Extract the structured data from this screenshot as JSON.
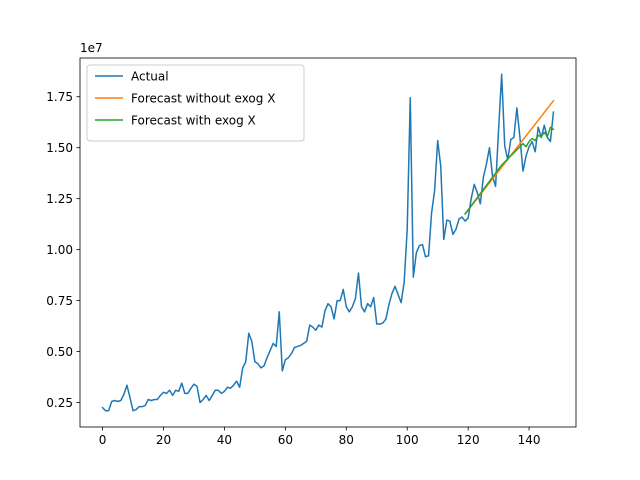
{
  "chart_data": {
    "type": "line",
    "title": "",
    "xlabel": "",
    "ylabel": "",
    "y_offset_label": "1e7",
    "xlim": [
      -7.4,
      155.4
    ],
    "ylim": [
      1.3,
      19.4
    ],
    "x_ticks": [
      0,
      20,
      40,
      60,
      80,
      100,
      120,
      140
    ],
    "x_tick_labels": [
      "0",
      "20",
      "40",
      "60",
      "80",
      "100",
      "120",
      "140"
    ],
    "y_ticks": [
      2.5,
      5.0,
      7.5,
      10.0,
      12.5,
      15.0,
      17.5
    ],
    "y_tick_labels": [
      "0.25",
      "0.50",
      "0.75",
      "1.00",
      "1.25",
      "1.50",
      "1.75"
    ],
    "grid": false,
    "legend_position": "top-left",
    "series": [
      {
        "name": "Actual",
        "color": "#1f77b4",
        "x": [
          0,
          1,
          2,
          3,
          4,
          5,
          6,
          7,
          8,
          9,
          10,
          11,
          12,
          13,
          14,
          15,
          16,
          17,
          18,
          19,
          20,
          21,
          22,
          23,
          24,
          25,
          26,
          27,
          28,
          29,
          30,
          31,
          32,
          33,
          34,
          35,
          36,
          37,
          38,
          39,
          40,
          41,
          42,
          43,
          44,
          45,
          46,
          47,
          48,
          49,
          50,
          51,
          52,
          53,
          54,
          55,
          56,
          57,
          58,
          59,
          60,
          61,
          62,
          63,
          64,
          65,
          66,
          67,
          68,
          69,
          70,
          71,
          72,
          73,
          74,
          75,
          76,
          77,
          78,
          79,
          80,
          81,
          82,
          83,
          84,
          85,
          86,
          87,
          88,
          89,
          90,
          91,
          92,
          93,
          94,
          95,
          96,
          97,
          98,
          99,
          100,
          101,
          102,
          103,
          104,
          105,
          106,
          107,
          108,
          109,
          110,
          111,
          112,
          113,
          114,
          115,
          116,
          117,
          118,
          119,
          120,
          121,
          122,
          123,
          124,
          125,
          126,
          127,
          128,
          129,
          130,
          131,
          132,
          133,
          134,
          135,
          136,
          137,
          138,
          139,
          140,
          141,
          142,
          143,
          144,
          145,
          146,
          147,
          148
        ],
        "values": [
          2.25,
          2.1,
          2.1,
          2.55,
          2.6,
          2.55,
          2.6,
          2.9,
          3.35,
          2.75,
          2.1,
          2.15,
          2.3,
          2.3,
          2.35,
          2.65,
          2.6,
          2.65,
          2.65,
          2.85,
          3.0,
          2.95,
          3.1,
          2.85,
          3.1,
          3.05,
          3.45,
          2.95,
          2.95,
          3.2,
          3.4,
          3.3,
          2.5,
          2.65,
          2.85,
          2.6,
          2.85,
          3.1,
          3.1,
          2.95,
          3.05,
          3.25,
          3.2,
          3.35,
          3.55,
          3.25,
          4.2,
          4.5,
          5.9,
          5.5,
          4.5,
          4.4,
          4.2,
          4.3,
          4.7,
          5.05,
          5.4,
          5.25,
          6.95,
          4.05,
          4.6,
          4.7,
          4.9,
          5.2,
          5.25,
          5.3,
          5.4,
          5.5,
          6.3,
          6.2,
          6.05,
          6.3,
          6.2,
          7.0,
          7.35,
          7.2,
          6.6,
          7.5,
          7.5,
          8.05,
          7.2,
          6.95,
          7.2,
          7.6,
          8.85,
          7.2,
          6.95,
          7.35,
          7.2,
          7.65,
          6.35,
          6.35,
          6.4,
          6.6,
          7.3,
          7.85,
          8.2,
          7.8,
          7.4,
          8.4,
          11.0,
          17.45,
          8.65,
          9.85,
          10.2,
          10.25,
          9.65,
          9.7,
          11.8,
          12.9,
          15.35,
          14.1,
          10.5,
          11.45,
          11.4,
          10.75,
          11.0,
          11.5,
          11.6,
          11.4,
          11.55,
          12.5,
          13.2,
          12.8,
          12.25,
          13.55,
          14.2,
          15.0,
          13.6,
          13.1,
          15.9,
          18.6,
          15.1,
          14.4,
          15.4,
          15.5,
          16.95,
          15.5,
          13.85,
          14.6,
          15.05,
          15.3,
          14.8,
          16.0,
          15.5,
          16.1,
          15.5,
          15.3,
          16.75
        ]
      },
      {
        "name": "Forecast without exog X",
        "color": "#ff7f0e",
        "x": [
          119,
          148
        ],
        "values": [
          11.75,
          17.3
        ]
      },
      {
        "name": "Forecast with exog X",
        "color": "#2ca02c",
        "x": [
          119,
          120,
          121,
          122,
          123,
          124,
          125,
          126,
          127,
          128,
          129,
          130,
          131,
          132,
          133,
          134,
          135,
          136,
          137,
          138,
          139,
          140,
          141,
          142,
          143,
          144,
          145,
          146,
          147,
          148
        ],
        "values": [
          11.75,
          11.95,
          12.15,
          12.35,
          12.55,
          12.75,
          12.95,
          13.15,
          13.35,
          13.55,
          13.75,
          13.95,
          14.15,
          14.3,
          14.45,
          14.6,
          14.75,
          14.9,
          15.05,
          15.2,
          15.05,
          15.3,
          15.45,
          15.35,
          15.6,
          15.55,
          15.75,
          15.55,
          16.0,
          15.9
        ]
      }
    ]
  }
}
